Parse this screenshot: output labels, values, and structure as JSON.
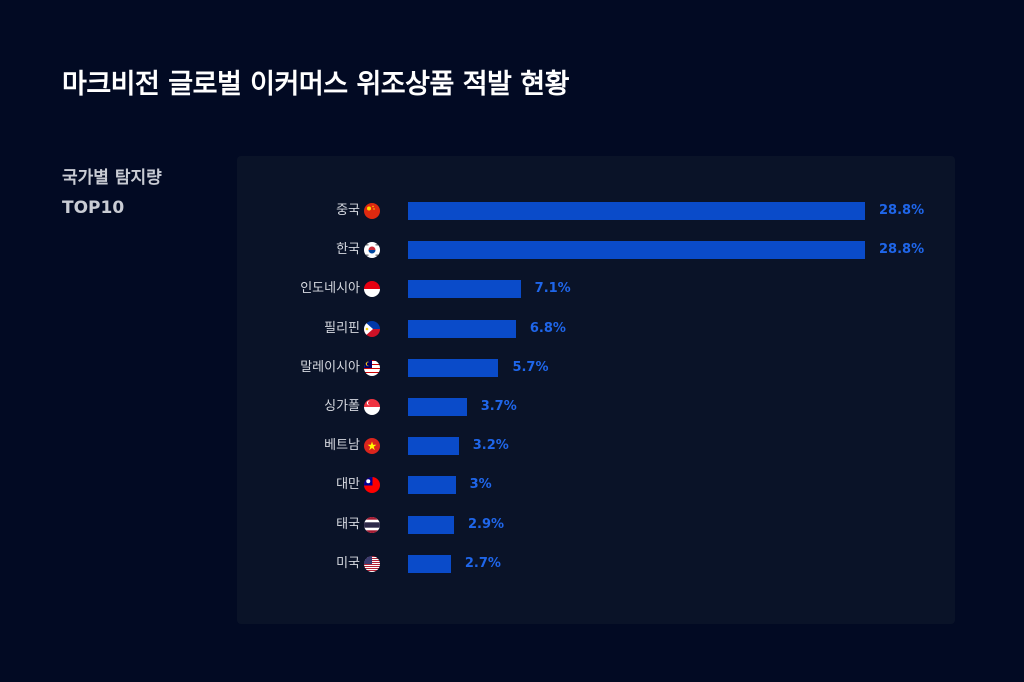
{
  "header": {
    "title": "마크비전 글로벌 이커머스 위조상품 적발 현황"
  },
  "section": {
    "subtitle_line1": "국가별 탐지량",
    "subtitle_line2": "TOP10"
  },
  "chart_data": {
    "type": "bar",
    "orientation": "horizontal",
    "title": "국가별 탐지량 TOP10",
    "categories": [
      "중국",
      "한국",
      "인도네시아",
      "필리핀",
      "말레이시아",
      "싱가폴",
      "베트남",
      "대만",
      "태국",
      "미국"
    ],
    "values": [
      28.8,
      28.8,
      7.1,
      6.8,
      5.7,
      3.7,
      3.2,
      3,
      2.9,
      2.7
    ],
    "value_labels": [
      "28.8%",
      "28.8%",
      "7.1%",
      "6.8%",
      "5.7%",
      "3.7%",
      "3.2%",
      "3%",
      "2.9%",
      "2.7%"
    ],
    "flags": [
      "china-flag-icon",
      "south-korea-flag-icon",
      "indonesia-flag-icon",
      "philippines-flag-icon",
      "malaysia-flag-icon",
      "singapore-flag-icon",
      "vietnam-flag-icon",
      "taiwan-flag-icon",
      "thailand-flag-icon",
      "usa-flag-icon"
    ],
    "xlim": [
      0,
      28.8
    ],
    "grid": false,
    "legend": "none",
    "colors": {
      "bar": "#0a4bc9",
      "value_text": "#1f66ea",
      "background": "#020a23",
      "panel": "#0a1328"
    }
  }
}
